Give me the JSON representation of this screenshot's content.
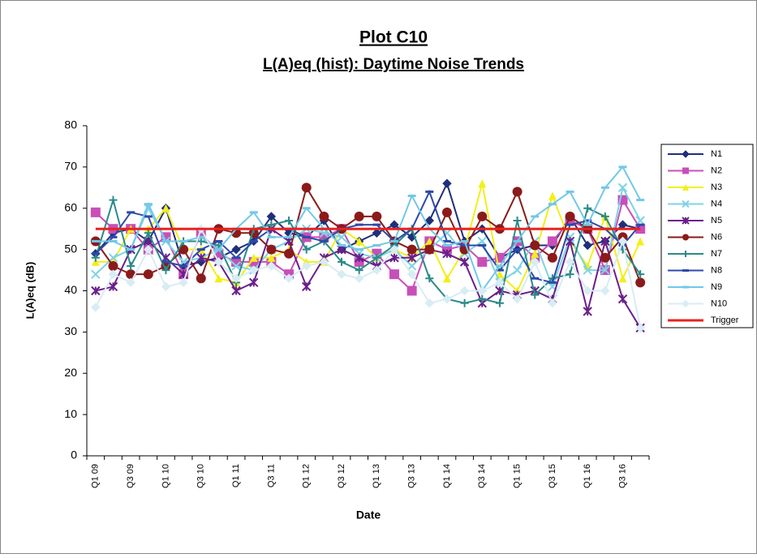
{
  "chart_data": {
    "type": "line",
    "title": "Plot C10",
    "subtitle": "L(A)eq (hist): Daytime Noise Trends",
    "x_label": "Date",
    "y_label": "L(A)eq (dB)",
    "categories": [
      "Q1 09",
      null,
      "Q3 09",
      null,
      "Q1 10",
      null,
      "Q3 10",
      null,
      "Q1 11",
      null,
      "Q3 11",
      null,
      "Q1 12",
      null,
      "Q3 12",
      null,
      "Q1 13",
      null,
      "Q3 13",
      null,
      "Q1 14",
      null,
      "Q3 14",
      null,
      "Q1 15",
      null,
      "Q3 15",
      null,
      "Q1 16",
      null,
      "Q3 16",
      null
    ],
    "ylim": [
      0,
      80
    ],
    "yticks": [
      0,
      10,
      20,
      30,
      40,
      50,
      60,
      70,
      80
    ],
    "grid": false,
    "legend": "right",
    "series": [
      {
        "name": "N1",
        "color": "#1f2f7a",
        "marker": "diamond",
        "values": [
          49,
          54,
          55,
          52,
          60,
          46,
          47,
          48,
          50,
          52,
          58,
          54,
          53,
          57,
          50,
          52,
          54,
          56,
          53,
          57,
          66,
          52,
          55,
          48,
          50,
          51,
          51,
          58,
          51,
          52,
          56,
          55
        ]
      },
      {
        "name": "N2",
        "color": "#c84fb8",
        "marker": "square",
        "values": [
          59,
          55,
          55,
          50,
          53,
          44,
          54,
          49,
          47,
          47,
          47,
          44,
          53,
          53,
          55,
          47,
          49,
          44,
          40,
          52,
          50,
          51,
          47,
          48,
          52,
          48,
          52,
          57,
          55,
          45,
          62,
          55
        ]
      },
      {
        "name": "N3",
        "color": "#f2ef1a",
        "marker": "triangle",
        "values": [
          47,
          47,
          55,
          55,
          60,
          50,
          50,
          43,
          42,
          48,
          48,
          50,
          47,
          47,
          55,
          52,
          48,
          50,
          48,
          52,
          43,
          50,
          66,
          44,
          40,
          49,
          63,
          52,
          46,
          58,
          43,
          52
        ]
      },
      {
        "name": "N4",
        "color": "#7fd3e6",
        "marker": "x",
        "values": [
          44,
          48,
          50,
          60,
          52,
          47,
          48,
          50,
          46,
          45,
          50,
          52,
          55,
          54,
          53,
          49,
          48,
          50,
          46,
          50,
          54,
          49,
          52,
          42,
          45,
          52,
          41,
          53,
          45,
          45,
          65,
          57
        ]
      },
      {
        "name": "N5",
        "color": "#6a1f8a",
        "marker": "star",
        "values": [
          40,
          41,
          50,
          52,
          48,
          44,
          48,
          47,
          40,
          42,
          55,
          52,
          41,
          48,
          50,
          48,
          46,
          48,
          48,
          50,
          49,
          47,
          37,
          40,
          39,
          40,
          38,
          52,
          35,
          52,
          38,
          31
        ]
      },
      {
        "name": "N6",
        "color": "#8b1a1a",
        "marker": "circle",
        "values": [
          52,
          46,
          44,
          44,
          46,
          50,
          43,
          55,
          54,
          54,
          50,
          49,
          65,
          58,
          55,
          58,
          58,
          52,
          50,
          50,
          59,
          50,
          58,
          55,
          64,
          51,
          48,
          58,
          55,
          48,
          53,
          42
        ]
      },
      {
        "name": "N7",
        "color": "#2b8a8a",
        "marker": "plus",
        "values": [
          48,
          62,
          46,
          54,
          45,
          52,
          52,
          51,
          42,
          55,
          56,
          57,
          50,
          52,
          47,
          45,
          48,
          51,
          55,
          43,
          38,
          37,
          38,
          37,
          57,
          39,
          43,
          44,
          60,
          58,
          50,
          44
        ]
      },
      {
        "name": "N8",
        "color": "#2c4aa8",
        "marker": "dash",
        "values": [
          49,
          53,
          59,
          58,
          47,
          46,
          50,
          52,
          48,
          52,
          55,
          55,
          53,
          52,
          55,
          56,
          56,
          52,
          55,
          64,
          52,
          51,
          51,
          45,
          50,
          43,
          42,
          56,
          57,
          55,
          51,
          56
        ]
      },
      {
        "name": "N9",
        "color": "#72c8e8",
        "marker": "dash",
        "values": [
          52,
          52,
          50,
          61,
          52,
          52,
          53,
          50,
          55,
          59,
          53,
          53,
          60,
          55,
          51,
          50,
          51,
          52,
          63,
          55,
          51,
          52,
          40,
          46,
          52,
          58,
          61,
          64,
          56,
          65,
          70,
          62
        ]
      },
      {
        "name": "N10",
        "color": "#d8ecf4",
        "marker": "diamond",
        "values": [
          36,
          44,
          42,
          50,
          41,
          42,
          55,
          47,
          43,
          45,
          46,
          43,
          46,
          47,
          44,
          43,
          45,
          50,
          44,
          37,
          38,
          40,
          40,
          42,
          38,
          47,
          37,
          47,
          40,
          40,
          52,
          31
        ]
      },
      {
        "name": "Trigger",
        "color": "#e8231f",
        "marker": "none",
        "values": [
          55,
          55,
          55,
          55,
          55,
          55,
          55,
          55,
          55,
          55,
          55,
          55,
          55,
          55,
          55,
          55,
          55,
          55,
          55,
          55,
          55,
          55,
          55,
          55,
          55,
          55,
          55,
          55,
          55,
          55,
          55,
          55
        ]
      }
    ]
  }
}
